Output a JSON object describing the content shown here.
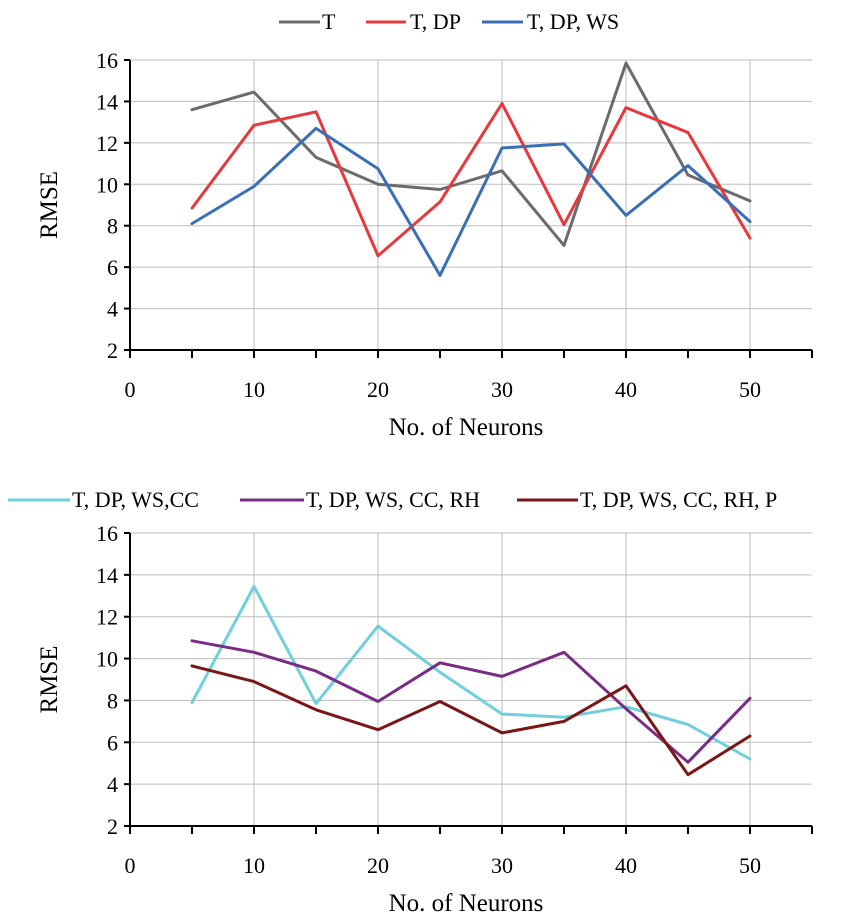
{
  "chart_data": [
    {
      "type": "line",
      "xlabel": "No. of Neurons",
      "ylabel": "RMSE",
      "xlim": [
        0,
        55
      ],
      "ylim": [
        2,
        16
      ],
      "xticks": [
        "0",
        "10",
        "20",
        "30",
        "40",
        "50"
      ],
      "yticks": [
        "2",
        "4",
        "6",
        "8",
        "10",
        "12",
        "14",
        "16"
      ],
      "grid": true,
      "legend": "top",
      "x": [
        5,
        10,
        15,
        20,
        25,
        30,
        35,
        40,
        45,
        50
      ],
      "series": [
        {
          "name": "T",
          "color": "#6b6b6b",
          "values": [
            13.6,
            14.45,
            11.3,
            10.0,
            9.75,
            10.65,
            7.05,
            15.85,
            10.45,
            9.2
          ]
        },
        {
          "name": "T, DP",
          "color": "#e8383d",
          "values": [
            8.85,
            12.85,
            13.5,
            6.55,
            9.15,
            13.9,
            8.05,
            13.7,
            12.5,
            7.4
          ]
        },
        {
          "name": "T, DP, WS",
          "color": "#3a6fb5",
          "values": [
            8.1,
            9.9,
            12.7,
            10.75,
            5.6,
            11.75,
            11.95,
            8.5,
            10.9,
            8.2
          ]
        }
      ]
    },
    {
      "type": "line",
      "xlabel": "No. of Neurons",
      "ylabel": "RMSE",
      "xlim": [
        0,
        55
      ],
      "ylim": [
        2,
        16
      ],
      "xticks": [
        "0",
        "10",
        "20",
        "30",
        "40",
        "50"
      ],
      "yticks": [
        "2",
        "4",
        "6",
        "8",
        "10",
        "12",
        "14",
        "16"
      ],
      "grid": true,
      "legend": "top",
      "x": [
        5,
        10,
        15,
        20,
        25,
        30,
        35,
        40,
        45,
        50
      ],
      "series": [
        {
          "name": "T, DP, WS,CC",
          "color": "#6fcfdc",
          "values": [
            7.9,
            13.45,
            7.85,
            11.55,
            9.35,
            7.35,
            7.2,
            7.7,
            6.85,
            5.2
          ]
        },
        {
          "name": "T, DP, WS, CC, RH",
          "color": "#7a2b84",
          "values": [
            10.85,
            10.3,
            9.4,
            7.95,
            9.8,
            9.15,
            10.3,
            7.6,
            5.05,
            8.1
          ]
        },
        {
          "name": "T, DP, WS, CC, RH, P",
          "color": "#7a1616",
          "values": [
            9.65,
            8.9,
            7.55,
            6.6,
            7.95,
            6.45,
            7.0,
            8.7,
            4.45,
            6.3
          ]
        }
      ]
    }
  ]
}
